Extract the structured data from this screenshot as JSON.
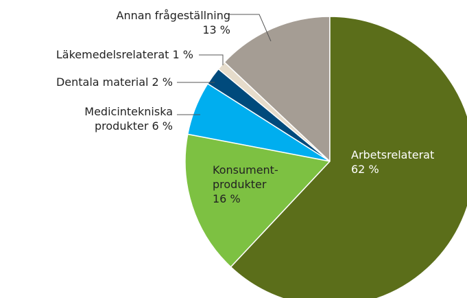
{
  "chart_data": {
    "type": "pie",
    "categories": [
      "Arbetsrelaterat",
      "Konsument-produkter",
      "Medicintekniska produkter",
      "Dentala material",
      "Läkemedelsrelaterat",
      "Annan frågeställning"
    ],
    "values": [
      62,
      16,
      6,
      2,
      1,
      13
    ],
    "value_labels": [
      "62 %",
      "16 %",
      "6 %",
      "2 %",
      "1 %",
      "13 %"
    ],
    "colors": [
      "#5b6e1a",
      "#7dc142",
      "#00aeef",
      "#004a7c",
      "#e6dccb",
      "#a59d94"
    ]
  }
}
